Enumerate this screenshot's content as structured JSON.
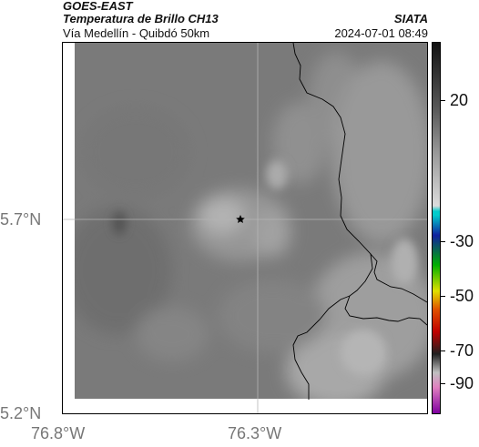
{
  "header": {
    "satellite": "GOES-EAST",
    "product": "Temperatura de Brillo CH13",
    "route": "Vía Medellín - Quibdó 50km",
    "agency": "SIATA",
    "timestamp": "2024-07-01 08:49"
  },
  "map": {
    "lat_labels": [
      "5.7°N",
      "5.2°N"
    ],
    "lon_labels": [
      "76.8°W",
      "76.3°W"
    ],
    "marker": "star-icon"
  },
  "colorbar": {
    "labels": [
      "20",
      "-30",
      "-50",
      "-70",
      "-90"
    ],
    "colors": [
      "#111111",
      "#5a5a5a",
      "#9a9a9a",
      "#dcdcdc",
      "#00cccc",
      "#1020a0",
      "#00b000",
      "#e0e000",
      "#e05000",
      "#c00000",
      "#202020",
      "#c0c0c0",
      "#e080c0",
      "#8000a0"
    ]
  }
}
